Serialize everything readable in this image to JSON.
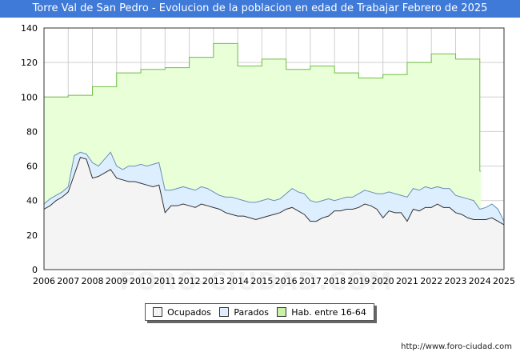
{
  "header": {
    "title": "Torre Val de San Pedro - Evolucion de la poblacion en edad de Trabajar Febrero de 2025"
  },
  "footer": {
    "url": "http://www.foro-ciudad.com"
  },
  "watermark": {
    "text": "FORO-CIUDAD.COM"
  },
  "colors": {
    "title_bg": "#3f7ad9",
    "hab": "#e8ffd8",
    "hab_line": "#6fbf3f",
    "parados": "#ddeeff",
    "parados_line": "#6a8fb8",
    "ocupados": "#f4f4f4",
    "ocupados_line": "#333333",
    "grid": "#cfcfcf"
  },
  "chart_data": {
    "type": "area",
    "title": "Torre Val de San Pedro - Evolucion de la poblacion en edad de Trabajar Febrero de 2025",
    "xlabel": "",
    "ylabel": "",
    "xlim": [
      2006,
      2025
    ],
    "ylim": [
      0,
      140
    ],
    "yticks": [
      0,
      20,
      40,
      60,
      80,
      100,
      120,
      140
    ],
    "xticks": [
      "2006",
      "2007",
      "2008",
      "2009",
      "2010",
      "2011",
      "2012",
      "2013",
      "2014",
      "2015",
      "2016",
      "2017",
      "2018",
      "2019",
      "2020",
      "2021",
      "2022",
      "2023",
      "2024",
      "2025"
    ],
    "legend": [
      "Ocupados",
      "Parados",
      "Hab. entre 16-64"
    ],
    "legend_position": "bottom",
    "grid": true,
    "series": [
      {
        "name": "Hab. entre 16-64",
        "step": true,
        "x": [
          2006,
          2007,
          2008,
          2009,
          2010,
          2011,
          2012,
          2013,
          2014,
          2015,
          2016,
          2017,
          2018,
          2019,
          2020,
          2021,
          2022,
          2023,
          2024
        ],
        "values": [
          100,
          101,
          106,
          114,
          116,
          117,
          123,
          131,
          118,
          122,
          116,
          118,
          114,
          111,
          113,
          120,
          125,
          122,
          57
        ]
      },
      {
        "name": "Parados",
        "x": [
          2006.0,
          2006.25,
          2006.5,
          2006.75,
          2007.0,
          2007.25,
          2007.5,
          2007.75,
          2008.0,
          2008.25,
          2008.5,
          2008.75,
          2009.0,
          2009.25,
          2009.5,
          2009.75,
          2010.0,
          2010.25,
          2010.5,
          2010.75,
          2011.0,
          2011.25,
          2011.5,
          2011.75,
          2012.0,
          2012.25,
          2012.5,
          2012.75,
          2013.0,
          2013.25,
          2013.5,
          2013.75,
          2014.0,
          2014.25,
          2014.5,
          2014.75,
          2015.0,
          2015.25,
          2015.5,
          2015.75,
          2016.0,
          2016.25,
          2016.5,
          2016.75,
          2017.0,
          2017.25,
          2017.5,
          2017.75,
          2018.0,
          2018.25,
          2018.5,
          2018.75,
          2019.0,
          2019.25,
          2019.5,
          2019.75,
          2020.0,
          2020.25,
          2020.5,
          2020.75,
          2021.0,
          2021.25,
          2021.5,
          2021.75,
          2022.0,
          2022.25,
          2022.5,
          2022.75,
          2023.0,
          2023.25,
          2023.5,
          2023.75,
          2024.0,
          2024.25,
          2024.5,
          2024.75,
          2025.0
        ],
        "values": [
          38,
          41,
          43,
          45,
          48,
          66,
          68,
          67,
          62,
          60,
          64,
          68,
          60,
          58,
          60,
          60,
          61,
          60,
          61,
          62,
          46,
          46,
          47,
          48,
          47,
          46,
          48,
          47,
          45,
          43,
          42,
          42,
          41,
          40,
          39,
          39,
          40,
          41,
          40,
          41,
          44,
          47,
          45,
          44,
          40,
          39,
          40,
          41,
          40,
          41,
          42,
          42,
          44,
          46,
          45,
          44,
          44,
          45,
          44,
          43,
          42,
          47,
          46,
          48,
          47,
          48,
          47,
          47,
          43,
          42,
          41,
          40,
          35,
          36,
          38,
          35,
          28
        ]
      },
      {
        "name": "Ocupados",
        "x": [
          2006.0,
          2006.25,
          2006.5,
          2006.75,
          2007.0,
          2007.25,
          2007.5,
          2007.75,
          2008.0,
          2008.25,
          2008.5,
          2008.75,
          2009.0,
          2009.25,
          2009.5,
          2009.75,
          2010.0,
          2010.25,
          2010.5,
          2010.75,
          2011.0,
          2011.25,
          2011.5,
          2011.75,
          2012.0,
          2012.25,
          2012.5,
          2012.75,
          2013.0,
          2013.25,
          2013.5,
          2013.75,
          2014.0,
          2014.25,
          2014.5,
          2014.75,
          2015.0,
          2015.25,
          2015.5,
          2015.75,
          2016.0,
          2016.25,
          2016.5,
          2016.75,
          2017.0,
          2017.25,
          2017.5,
          2017.75,
          2018.0,
          2018.25,
          2018.5,
          2018.75,
          2019.0,
          2019.25,
          2019.5,
          2019.75,
          2020.0,
          2020.25,
          2020.5,
          2020.75,
          2021.0,
          2021.25,
          2021.5,
          2021.75,
          2022.0,
          2022.25,
          2022.5,
          2022.75,
          2023.0,
          2023.25,
          2023.5,
          2023.75,
          2024.0,
          2024.25,
          2024.5,
          2024.75,
          2025.0
        ],
        "values": [
          35,
          37,
          40,
          42,
          45,
          55,
          65,
          64,
          53,
          54,
          56,
          58,
          53,
          52,
          51,
          51,
          50,
          49,
          48,
          49,
          33,
          37,
          37,
          38,
          37,
          36,
          38,
          37,
          36,
          35,
          33,
          32,
          31,
          31,
          30,
          29,
          30,
          31,
          32,
          33,
          35,
          36,
          34,
          32,
          28,
          28,
          30,
          31,
          34,
          34,
          35,
          35,
          36,
          38,
          37,
          35,
          30,
          34,
          33,
          33,
          28,
          35,
          34,
          36,
          36,
          38,
          36,
          36,
          33,
          32,
          30,
          29,
          29,
          29,
          30,
          28,
          26
        ]
      }
    ]
  }
}
